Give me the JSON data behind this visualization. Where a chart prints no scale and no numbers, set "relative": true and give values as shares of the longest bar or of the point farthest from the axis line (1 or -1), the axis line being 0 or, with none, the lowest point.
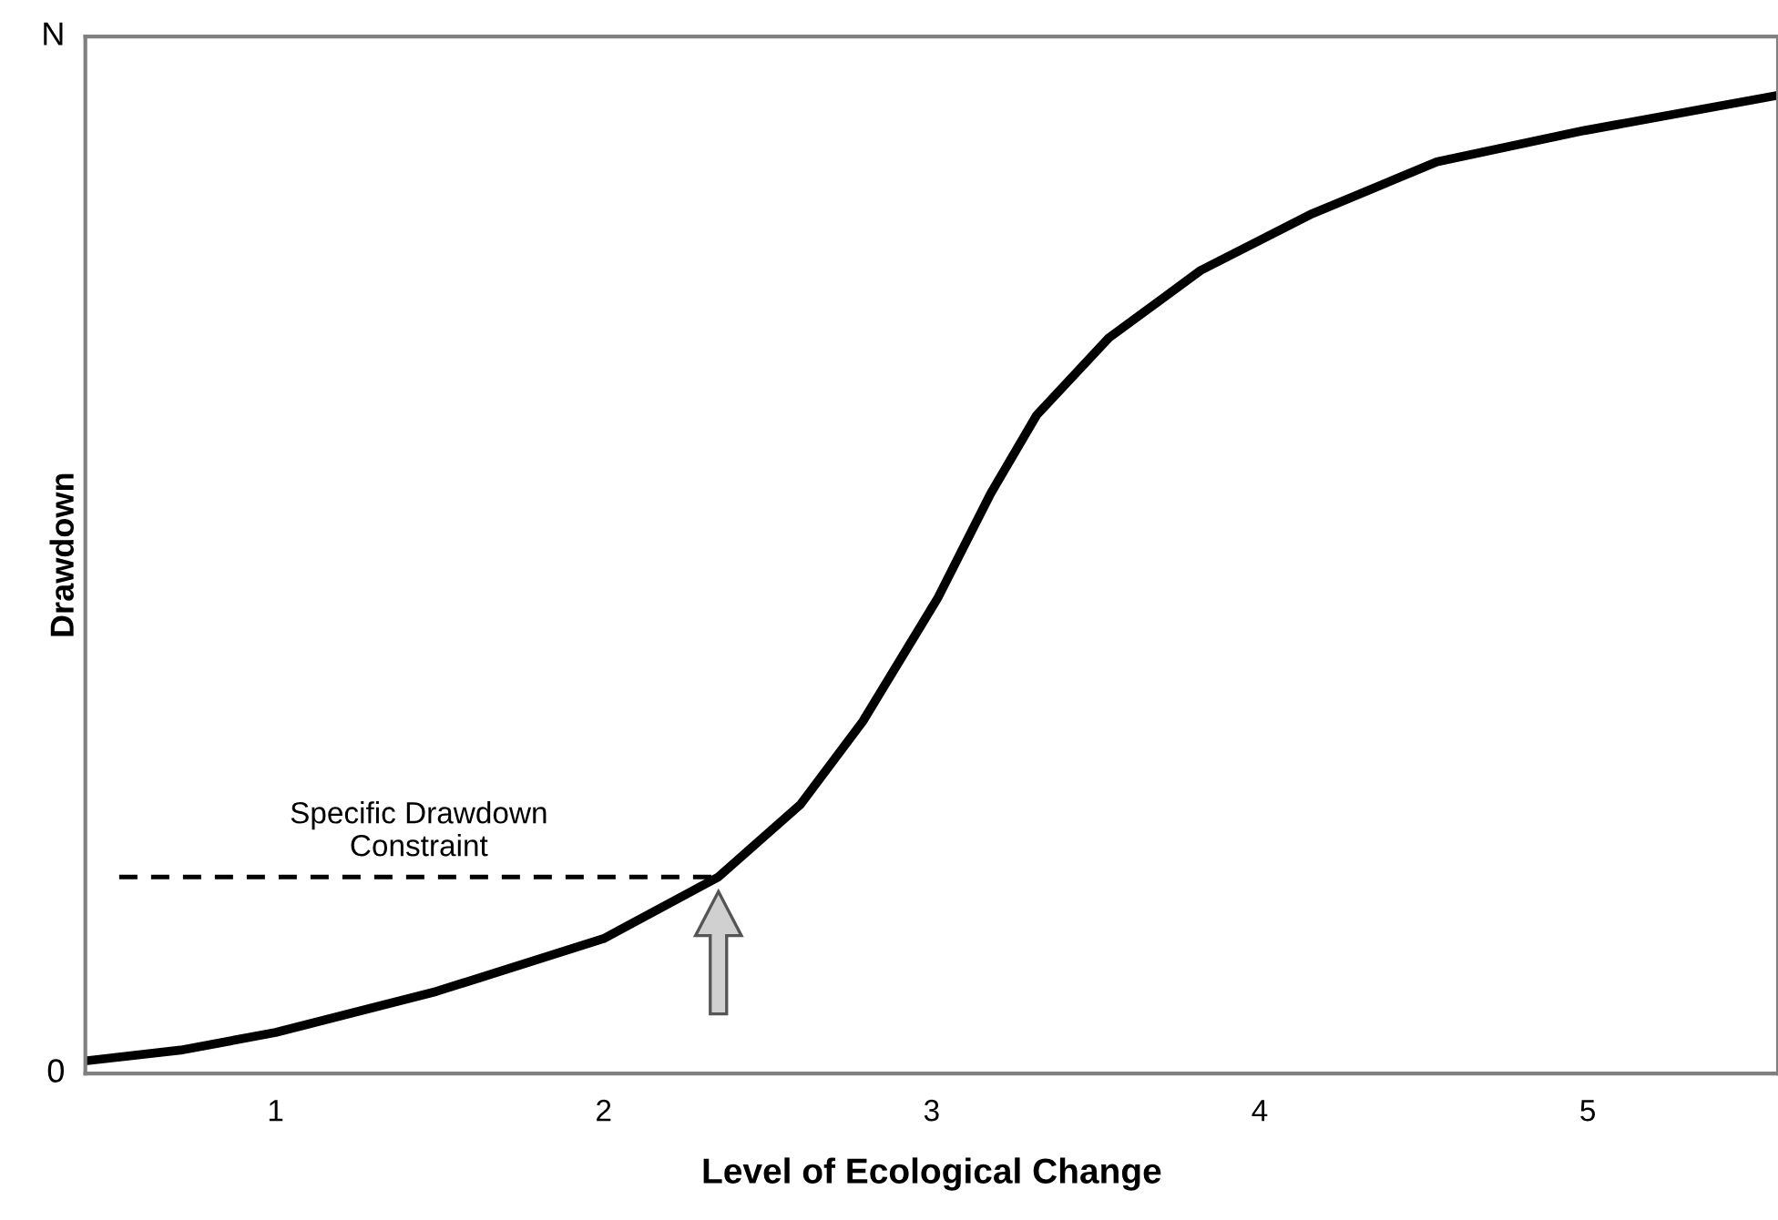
{
  "chart_data": {
    "type": "line",
    "xlabel": "Level of Ecological Change",
    "ylabel": "Drawdown",
    "xlim": [
      0.42,
      5.58
    ],
    "xticks": [
      1,
      2,
      3,
      4,
      5
    ],
    "relative": true,
    "tick_labels": "x",
    "annotations": [
      "0",
      "N"
    ],
    "grid": false,
    "marker": "none",
    "line_style": "solid",
    "series": [
      {
        "color": "#000000",
        "x": [
          0.42,
          0.71,
          1.0,
          1.49,
          2.0,
          2.35,
          2.6,
          2.79,
          3.02,
          3.18,
          3.32,
          3.54,
          3.82,
          4.16,
          4.54,
          4.99,
          5.58
        ],
        "values": [
          0.013,
          0.024,
          0.042,
          0.084,
          0.138,
          0.201,
          0.275,
          0.36,
          0.487,
          0.593,
          0.673,
          0.752,
          0.821,
          0.879,
          0.932,
          0.964,
          1.0
        ]
      }
    ],
    "ref_lines": [
      {
        "axis": "y",
        "value": 0.201,
        "label": "Specific Drawdown\nConstraint",
        "color": "#000000",
        "line_style": "dashed"
      }
    ]
  }
}
